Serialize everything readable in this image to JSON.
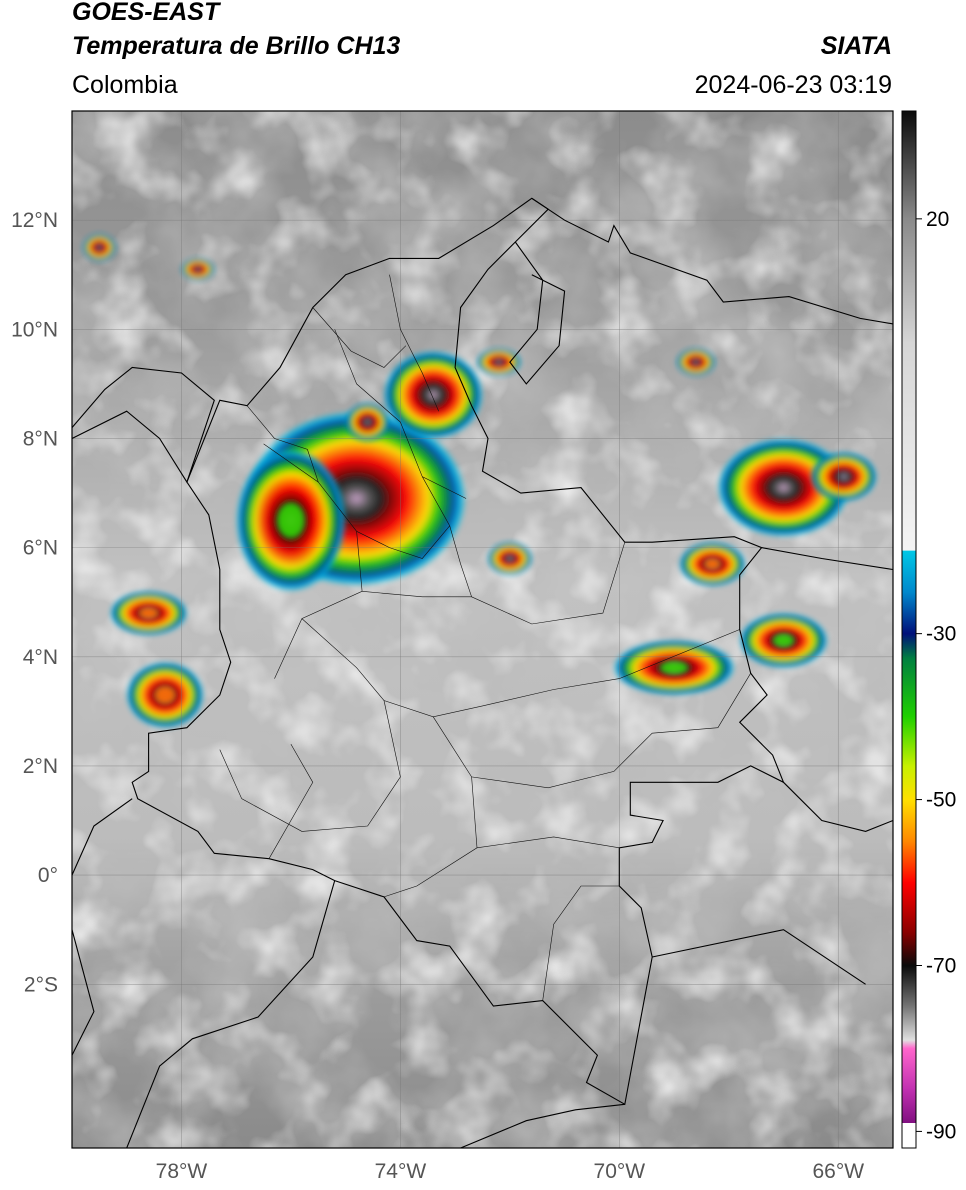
{
  "header": {
    "title_line1": "GOES-EAST",
    "title_line2": "Temperatura de Brillo CH13",
    "region": "Colombia",
    "organization": "SIATA",
    "datetime": "2024-06-23 03:19"
  },
  "map": {
    "lon_range": [
      -80,
      -65
    ],
    "lat_range": [
      -5,
      14
    ],
    "lat_ticks": [
      {
        "value": 12,
        "label": "12°N"
      },
      {
        "value": 10,
        "label": "10°N"
      },
      {
        "value": 8,
        "label": "8°N"
      },
      {
        "value": 6,
        "label": "6°N"
      },
      {
        "value": 4,
        "label": "4°N"
      },
      {
        "value": 2,
        "label": "2°N"
      },
      {
        "value": 0,
        "label": "0°"
      },
      {
        "value": -2,
        "label": "2°S"
      }
    ],
    "lon_ticks": [
      {
        "value": -78,
        "label": "78°W"
      },
      {
        "value": -74,
        "label": "74°W"
      },
      {
        "value": -70,
        "label": "70°W"
      },
      {
        "value": -66,
        "label": "66°W"
      }
    ],
    "gridlines": true
  },
  "colorbar": {
    "range": [
      -92,
      33
    ],
    "ticks": [
      {
        "value": 20,
        "label": "20"
      },
      {
        "value": -30,
        "label": "-30"
      },
      {
        "value": -50,
        "label": "-50"
      },
      {
        "value": -70,
        "label": "-70"
      },
      {
        "value": -90,
        "label": "-90"
      }
    ],
    "stops": [
      {
        "value": 33,
        "color": "#0a0a0a"
      },
      {
        "value": 20,
        "color": "#8a8a8a"
      },
      {
        "value": 5,
        "color": "#d6d6d6"
      },
      {
        "value": -20,
        "color": "#f4f4f4"
      },
      {
        "value": -20.01,
        "color": "#00c8e6"
      },
      {
        "value": -25,
        "color": "#0088cc"
      },
      {
        "value": -30,
        "color": "#00107a"
      },
      {
        "value": -33,
        "color": "#008040"
      },
      {
        "value": -40,
        "color": "#20d000"
      },
      {
        "value": -46,
        "color": "#c8f000"
      },
      {
        "value": -50,
        "color": "#ffe000"
      },
      {
        "value": -55,
        "color": "#ff8800"
      },
      {
        "value": -60,
        "color": "#ff0000"
      },
      {
        "value": -66,
        "color": "#8a0000"
      },
      {
        "value": -70,
        "color": "#0a0a0a"
      },
      {
        "value": -75,
        "color": "#777777"
      },
      {
        "value": -79,
        "color": "#e0e0e0"
      },
      {
        "value": -80,
        "color": "#ff66cc"
      },
      {
        "value": -85,
        "color": "#c030b0"
      },
      {
        "value": -89,
        "color": "#801080"
      },
      {
        "value": -89.01,
        "color": "#ffffff"
      },
      {
        "value": -92,
        "color": "#ffffff"
      }
    ]
  },
  "storms": [
    {
      "lon": -74.8,
      "lat": 6.9,
      "rx": 2.0,
      "ry": 1.6,
      "core": 1
    },
    {
      "lon": -73.4,
      "lat": 8.8,
      "rx": 0.9,
      "ry": 0.8,
      "core": 1
    },
    {
      "lon": -74.6,
      "lat": 8.3,
      "rx": 0.4,
      "ry": 0.35,
      "core": 1
    },
    {
      "lon": -67.0,
      "lat": 7.1,
      "rx": 1.2,
      "ry": 0.9,
      "core": 1
    },
    {
      "lon": -65.9,
      "lat": 7.3,
      "rx": 0.6,
      "ry": 0.45,
      "core": 0.9
    },
    {
      "lon": -72.0,
      "lat": 5.8,
      "rx": 0.4,
      "ry": 0.3,
      "core": 0.8
    },
    {
      "lon": -78.3,
      "lat": 3.3,
      "rx": 0.7,
      "ry": 0.6,
      "core": 0.55
    },
    {
      "lon": -78.6,
      "lat": 4.8,
      "rx": 0.7,
      "ry": 0.4,
      "core": 0.45
    },
    {
      "lon": -72.2,
      "lat": 9.4,
      "rx": 0.4,
      "ry": 0.25,
      "core": 0.7
    },
    {
      "lon": -68.6,
      "lat": 9.4,
      "rx": 0.35,
      "ry": 0.25,
      "core": 0.8
    },
    {
      "lon": -77.7,
      "lat": 11.1,
      "rx": 0.3,
      "ry": 0.2,
      "core": 0.8
    },
    {
      "lon": -68.3,
      "lat": 5.7,
      "rx": 0.6,
      "ry": 0.4,
      "core": 0.4
    },
    {
      "lon": -76.0,
      "lat": 6.5,
      "rx": 1.0,
      "ry": 1.3,
      "core": 0.35
    },
    {
      "lon": -69.0,
      "lat": 3.8,
      "rx": 1.1,
      "ry": 0.5,
      "core": 0.25
    },
    {
      "lon": -67.0,
      "lat": 4.3,
      "rx": 0.8,
      "ry": 0.5,
      "core": 0.3
    },
    {
      "lon": -79.5,
      "lat": 11.5,
      "rx": 0.3,
      "ry": 0.25,
      "core": 0.6
    }
  ]
}
